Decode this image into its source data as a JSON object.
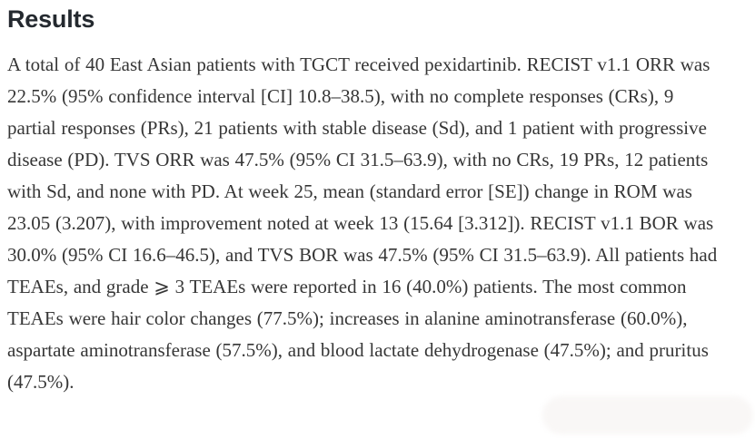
{
  "page": {
    "background_color": "#ffffff",
    "body_text_color": "#363636",
    "heading_color": "#24292f"
  },
  "results": {
    "heading": "Results",
    "paragraph": "A total of 40 East Asian patients with TGCT received pexidartinib. RECIST v1.1 ORR was 22.5% (95% confidence interval [CI] 10.8–38.5), with no complete responses (CRs), 9 partial responses (PRs), 21 patients with stable disease (Sd), and 1 patient with progressive disease (PD). TVS ORR was 47.5% (95% CI 31.5–63.9), with no CRs, 19 PRs, 12 patients with Sd, and none with PD. At week 25, mean (standard error [SE]) change in ROM was 23.05 (3.207), with improvement noted at week 13 (15.64 [3.312]). RECIST v1.1 BOR was 30.0% (95% CI 16.6–46.5), and TVS BOR was 47.5% (95% CI 31.5–63.9). All patients had TEAEs, and grade ⩾ 3 TEAEs were reported in 16 (40.0%) patients. The most common TEAEs were hair color changes (77.5%); increases in alanine aminotransferase (60.0%), aspartate aminotransferase (57.5%), and blood lactate dehydrogenase (47.5%); and pruritus (47.5%)."
  },
  "statistics": {
    "total_patients": 40,
    "recist_orr_pct": 22.5,
    "recist_orr_ci": "10.8–38.5",
    "partial_responses": 9,
    "stable_disease_patients": 21,
    "progressive_disease_patients": 1,
    "tvs_orr_pct": 47.5,
    "tvs_orr_ci": "31.5–63.9",
    "tvs_prs": 19,
    "tvs_sd_patients": 12,
    "rom_change_week25_mean": 23.05,
    "rom_change_week25_se": 3.207,
    "rom_change_week13_mean": 15.64,
    "rom_change_week13_se": 3.312,
    "recist_bor_pct": 30.0,
    "recist_bor_ci": "16.6–46.5",
    "tvs_bor_pct": 47.5,
    "tvs_bor_ci": "31.5–63.9",
    "grade3plus_teae_n": 16,
    "grade3plus_teae_pct": 40.0,
    "hair_color_changes_pct": 77.5,
    "alt_increase_pct": 60.0,
    "ast_increase_pct": 57.5,
    "ldh_increase_pct": 47.5,
    "pruritus_pct": 47.5
  }
}
